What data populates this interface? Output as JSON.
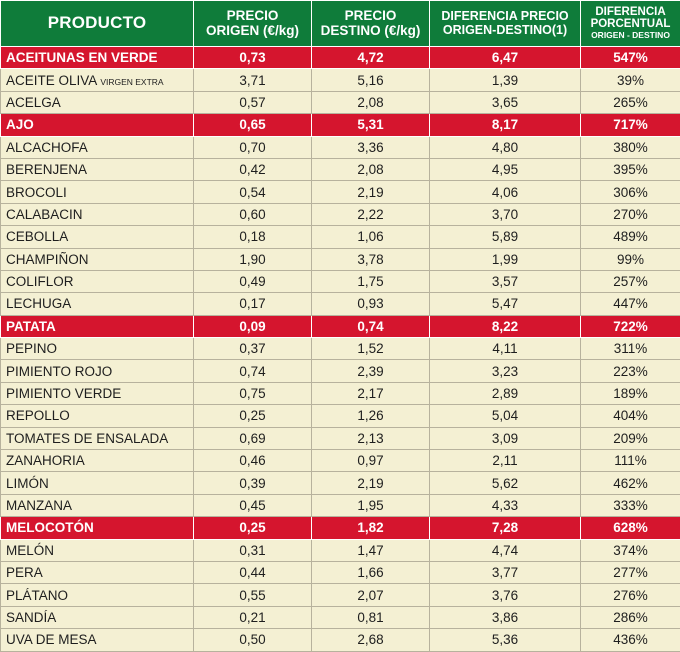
{
  "headers": {
    "producto": "PRODUCTO",
    "precio_origen": [
      "PRECIO",
      "ORIGEN (€/kg)"
    ],
    "precio_destino": [
      "PRECIO",
      "DESTINO (€/kg)"
    ],
    "diferencia": [
      "DIFERENCIA PRECIO",
      "ORIGEN-DESTINO(1)"
    ],
    "porcentual": [
      "DIFERENCIA",
      "PORCENTUAL",
      "ORIGEN - DESTINO"
    ]
  },
  "colors": {
    "header_bg": "#0f7c3a",
    "highlight_bg": "#d5152e",
    "row_bg": "#f4f0d3"
  },
  "rows": [
    {
      "name": "ACEITUNAS EN VERDE",
      "origen": "0,73",
      "destino": "4,72",
      "diferencia": "6,47",
      "porcentaje": "547%",
      "highlight": true
    },
    {
      "name": "ACEITE OLIVA",
      "name_small": "VIRGEN EXTRA",
      "origen": "3,71",
      "destino": "5,16",
      "diferencia": "1,39",
      "porcentaje": "39%",
      "highlight": false
    },
    {
      "name": "ACELGA",
      "origen": "0,57",
      "destino": "2,08",
      "diferencia": "3,65",
      "porcentaje": "265%",
      "highlight": false
    },
    {
      "name": "AJO",
      "origen": "0,65",
      "destino": "5,31",
      "diferencia": "8,17",
      "porcentaje": "717%",
      "highlight": true
    },
    {
      "name": "ALCACHOFA",
      "origen": "0,70",
      "destino": "3,36",
      "diferencia": "4,80",
      "porcentaje": "380%",
      "highlight": false
    },
    {
      "name": "BERENJENA",
      "origen": "0,42",
      "destino": "2,08",
      "diferencia": "4,95",
      "porcentaje": "395%",
      "highlight": false
    },
    {
      "name": "BROCOLI",
      "origen": "0,54",
      "destino": "2,19",
      "diferencia": "4,06",
      "porcentaje": "306%",
      "highlight": false
    },
    {
      "name": "CALABACIN",
      "origen": "0,60",
      "destino": "2,22",
      "diferencia": "3,70",
      "porcentaje": "270%",
      "highlight": false
    },
    {
      "name": "CEBOLLA",
      "origen": "0,18",
      "destino": "1,06",
      "diferencia": "5,89",
      "porcentaje": "489%",
      "highlight": false
    },
    {
      "name": "CHAMPIÑON",
      "origen": "1,90",
      "destino": "3,78",
      "diferencia": "1,99",
      "porcentaje": "99%",
      "highlight": false
    },
    {
      "name": "COLIFLOR",
      "origen": "0,49",
      "destino": "1,75",
      "diferencia": "3,57",
      "porcentaje": "257%",
      "highlight": false
    },
    {
      "name": "LECHUGA",
      "origen": "0,17",
      "destino": "0,93",
      "diferencia": "5,47",
      "porcentaje": "447%",
      "highlight": false
    },
    {
      "name": "PATATA",
      "origen": "0,09",
      "destino": "0,74",
      "diferencia": "8,22",
      "porcentaje": "722%",
      "highlight": true
    },
    {
      "name": "PEPINO",
      "origen": "0,37",
      "destino": "1,52",
      "diferencia": "4,11",
      "porcentaje": "311%",
      "highlight": false
    },
    {
      "name": "PIMIENTO ROJO",
      "origen": "0,74",
      "destino": "2,39",
      "diferencia": "3,23",
      "porcentaje": "223%",
      "highlight": false
    },
    {
      "name": "PIMIENTO VERDE",
      "origen": "0,75",
      "destino": "2,17",
      "diferencia": "2,89",
      "porcentaje": "189%",
      "highlight": false
    },
    {
      "name": "REPOLLO",
      "origen": "0,25",
      "destino": "1,26",
      "diferencia": "5,04",
      "porcentaje": "404%",
      "highlight": false
    },
    {
      "name": "TOMATES DE ENSALADA",
      "origen": "0,69",
      "destino": "2,13",
      "diferencia": "3,09",
      "porcentaje": "209%",
      "highlight": false
    },
    {
      "name": "ZANAHORIA",
      "origen": "0,46",
      "destino": "0,97",
      "diferencia": "2,11",
      "porcentaje": "111%",
      "highlight": false
    },
    {
      "name": "LIMÓN",
      "origen": "0,39",
      "destino": "2,19",
      "diferencia": "5,62",
      "porcentaje": "462%",
      "highlight": false
    },
    {
      "name": "MANZANA",
      "origen": "0,45",
      "destino": "1,95",
      "diferencia": "4,33",
      "porcentaje": "333%",
      "highlight": false
    },
    {
      "name": "MELOCOTÓN",
      "origen": "0,25",
      "destino": "1,82",
      "diferencia": "7,28",
      "porcentaje": "628%",
      "highlight": true
    },
    {
      "name": "MELÓN",
      "origen": "0,31",
      "destino": "1,47",
      "diferencia": "4,74",
      "porcentaje": "374%",
      "highlight": false
    },
    {
      "name": "PERA",
      "origen": "0,44",
      "destino": "1,66",
      "diferencia": "3,77",
      "porcentaje": "277%",
      "highlight": false
    },
    {
      "name": "PLÁTANO",
      "origen": "0,55",
      "destino": "2,07",
      "diferencia": "3,76",
      "porcentaje": "276%",
      "highlight": false
    },
    {
      "name": "SANDÍA",
      "origen": "0,21",
      "destino": "0,81",
      "diferencia": "3,86",
      "porcentaje": "286%",
      "highlight": false
    },
    {
      "name": "UVA DE MESA",
      "origen": "0,50",
      "destino": "2,68",
      "diferencia": "5,36",
      "porcentaje": "436%",
      "highlight": false
    }
  ]
}
